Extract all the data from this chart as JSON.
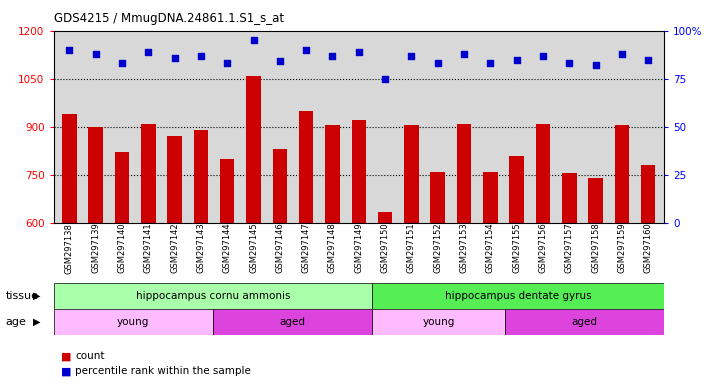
{
  "title": "GDS4215 / MmugDNA.24861.1.S1_s_at",
  "samples": [
    "GSM297138",
    "GSM297139",
    "GSM297140",
    "GSM297141",
    "GSM297142",
    "GSM297143",
    "GSM297144",
    "GSM297145",
    "GSM297146",
    "GSM297147",
    "GSM297148",
    "GSM297149",
    "GSM297150",
    "GSM297151",
    "GSM297152",
    "GSM297153",
    "GSM297154",
    "GSM297155",
    "GSM297156",
    "GSM297157",
    "GSM297158",
    "GSM297159",
    "GSM297160"
  ],
  "counts": [
    940,
    900,
    820,
    910,
    870,
    890,
    800,
    1060,
    830,
    950,
    905,
    920,
    635,
    905,
    760,
    910,
    760,
    810,
    910,
    755,
    740,
    905,
    780
  ],
  "percentiles": [
    90,
    88,
    83,
    89,
    86,
    87,
    83,
    95,
    84,
    90,
    87,
    89,
    75,
    87,
    83,
    88,
    83,
    85,
    87,
    83,
    82,
    88,
    85
  ],
  "ylim_left": [
    600,
    1200
  ],
  "ylim_right": [
    0,
    100
  ],
  "yticks_left": [
    600,
    750,
    900,
    1050,
    1200
  ],
  "yticks_right": [
    0,
    25,
    50,
    75,
    100
  ],
  "bar_color": "#cc0000",
  "dot_color": "#0000cc",
  "bg_color": "#d8d8d8",
  "tissue_groups": [
    {
      "label": "hippocampus cornu ammonis",
      "start": 0,
      "end": 12,
      "color": "#aaffaa"
    },
    {
      "label": "hippocampus dentate gyrus",
      "start": 12,
      "end": 23,
      "color": "#55ee55"
    }
  ],
  "age_groups": [
    {
      "label": "young",
      "start": 0,
      "end": 6,
      "color": "#ffbbff"
    },
    {
      "label": "aged",
      "start": 6,
      "end": 12,
      "color": "#dd44dd"
    },
    {
      "label": "young",
      "start": 12,
      "end": 17,
      "color": "#ffbbff"
    },
    {
      "label": "aged",
      "start": 17,
      "end": 23,
      "color": "#dd44dd"
    }
  ],
  "tissue_label": "tissue",
  "age_label": "age",
  "legend_count_label": "count",
  "legend_pct_label": "percentile rank within the sample"
}
